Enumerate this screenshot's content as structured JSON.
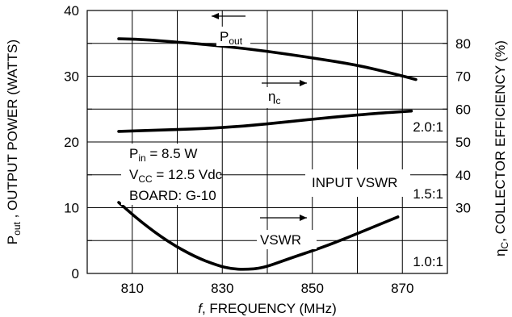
{
  "chart_data": {
    "type": "line",
    "xlabel_italic": "f",
    "xlabel": ", FREQUENCY (MHz)",
    "ylabel_left": {
      "p": "P",
      "sub": "out",
      "rest": " , OUTPUT POWER (WATTS)"
    },
    "ylabel_right": {
      "eta": "η",
      "sub": "C",
      "rest": ", COLLECTOR EFFICIENCY (%)"
    },
    "xlim": [
      800,
      880
    ],
    "ylim_left": [
      0,
      40
    ],
    "x_ticks": [
      810,
      830,
      850,
      870
    ],
    "y_ticks_left": [
      0,
      10,
      20,
      30,
      40
    ],
    "y_ticks_right": [
      30,
      40,
      50,
      60,
      70,
      80
    ],
    "vswr_labels": [
      "2.0:1",
      "1.5:1",
      "1.0:1"
    ],
    "series": [
      {
        "label": {
          "p": "P",
          "sub": "out"
        },
        "x": [
          807,
          812,
          820,
          830,
          840,
          850,
          860,
          868,
          873
        ],
        "y": [
          35.7,
          35.6,
          35.2,
          34.6,
          33.8,
          32.8,
          31.7,
          30.4,
          29.5
        ]
      },
      {
        "label": {
          "p": "η",
          "sub": "c"
        },
        "x": [
          807,
          815,
          825,
          835,
          845,
          855,
          865,
          872
        ],
        "y": [
          21.6,
          21.8,
          22.0,
          22.4,
          23.1,
          23.8,
          24.4,
          24.7
        ]
      },
      {
        "label": {
          "p": "VSWR",
          "sub": ""
        },
        "x": [
          807,
          812,
          818,
          824,
          829,
          832,
          835,
          839,
          845,
          852,
          858,
          864,
          869
        ],
        "y": [
          10.8,
          7.8,
          4.8,
          2.5,
          1.2,
          0.7,
          0.6,
          0.8,
          2.3,
          3.9,
          5.5,
          7.2,
          8.6
        ]
      }
    ],
    "annotations": {
      "pin": "P",
      "pin_sub": "in",
      "pin_val": " = 8.5 W",
      "vcc": "V",
      "vcc_sub": "CC",
      "vcc_val": " = 12.5 Vdc",
      "board": "BOARD: G-10",
      "input_vswr": "INPUT VSWR"
    },
    "grid": true
  }
}
